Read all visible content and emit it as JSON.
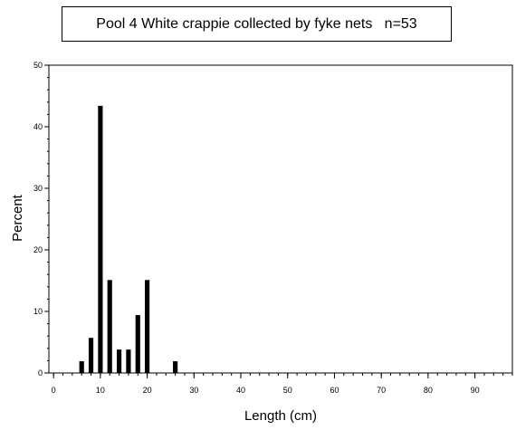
{
  "chart_data": {
    "type": "bar",
    "title": "Pool 4 White crappie collected by fyke nets   n=53",
    "xlabel": "Length (cm)",
    "ylabel": "Percent",
    "xlim": [
      -1,
      98
    ],
    "ylim": [
      0,
      50
    ],
    "x_ticks": [
      0,
      10,
      20,
      30,
      40,
      50,
      60,
      70,
      80,
      90
    ],
    "y_ticks": [
      0,
      10,
      20,
      30,
      40,
      50
    ],
    "x_minor_step": 2,
    "y_minor_step": 2,
    "bar_width_units": 1,
    "bar_color": "#000000",
    "bars": [
      {
        "x": 6,
        "value": 1.9
      },
      {
        "x": 8,
        "value": 5.7
      },
      {
        "x": 10,
        "value": 43.4
      },
      {
        "x": 12,
        "value": 15.1
      },
      {
        "x": 14,
        "value": 3.8
      },
      {
        "x": 16,
        "value": 3.8
      },
      {
        "x": 18,
        "value": 9.4
      },
      {
        "x": 20,
        "value": 15.1
      },
      {
        "x": 26,
        "value": 1.9
      }
    ]
  }
}
